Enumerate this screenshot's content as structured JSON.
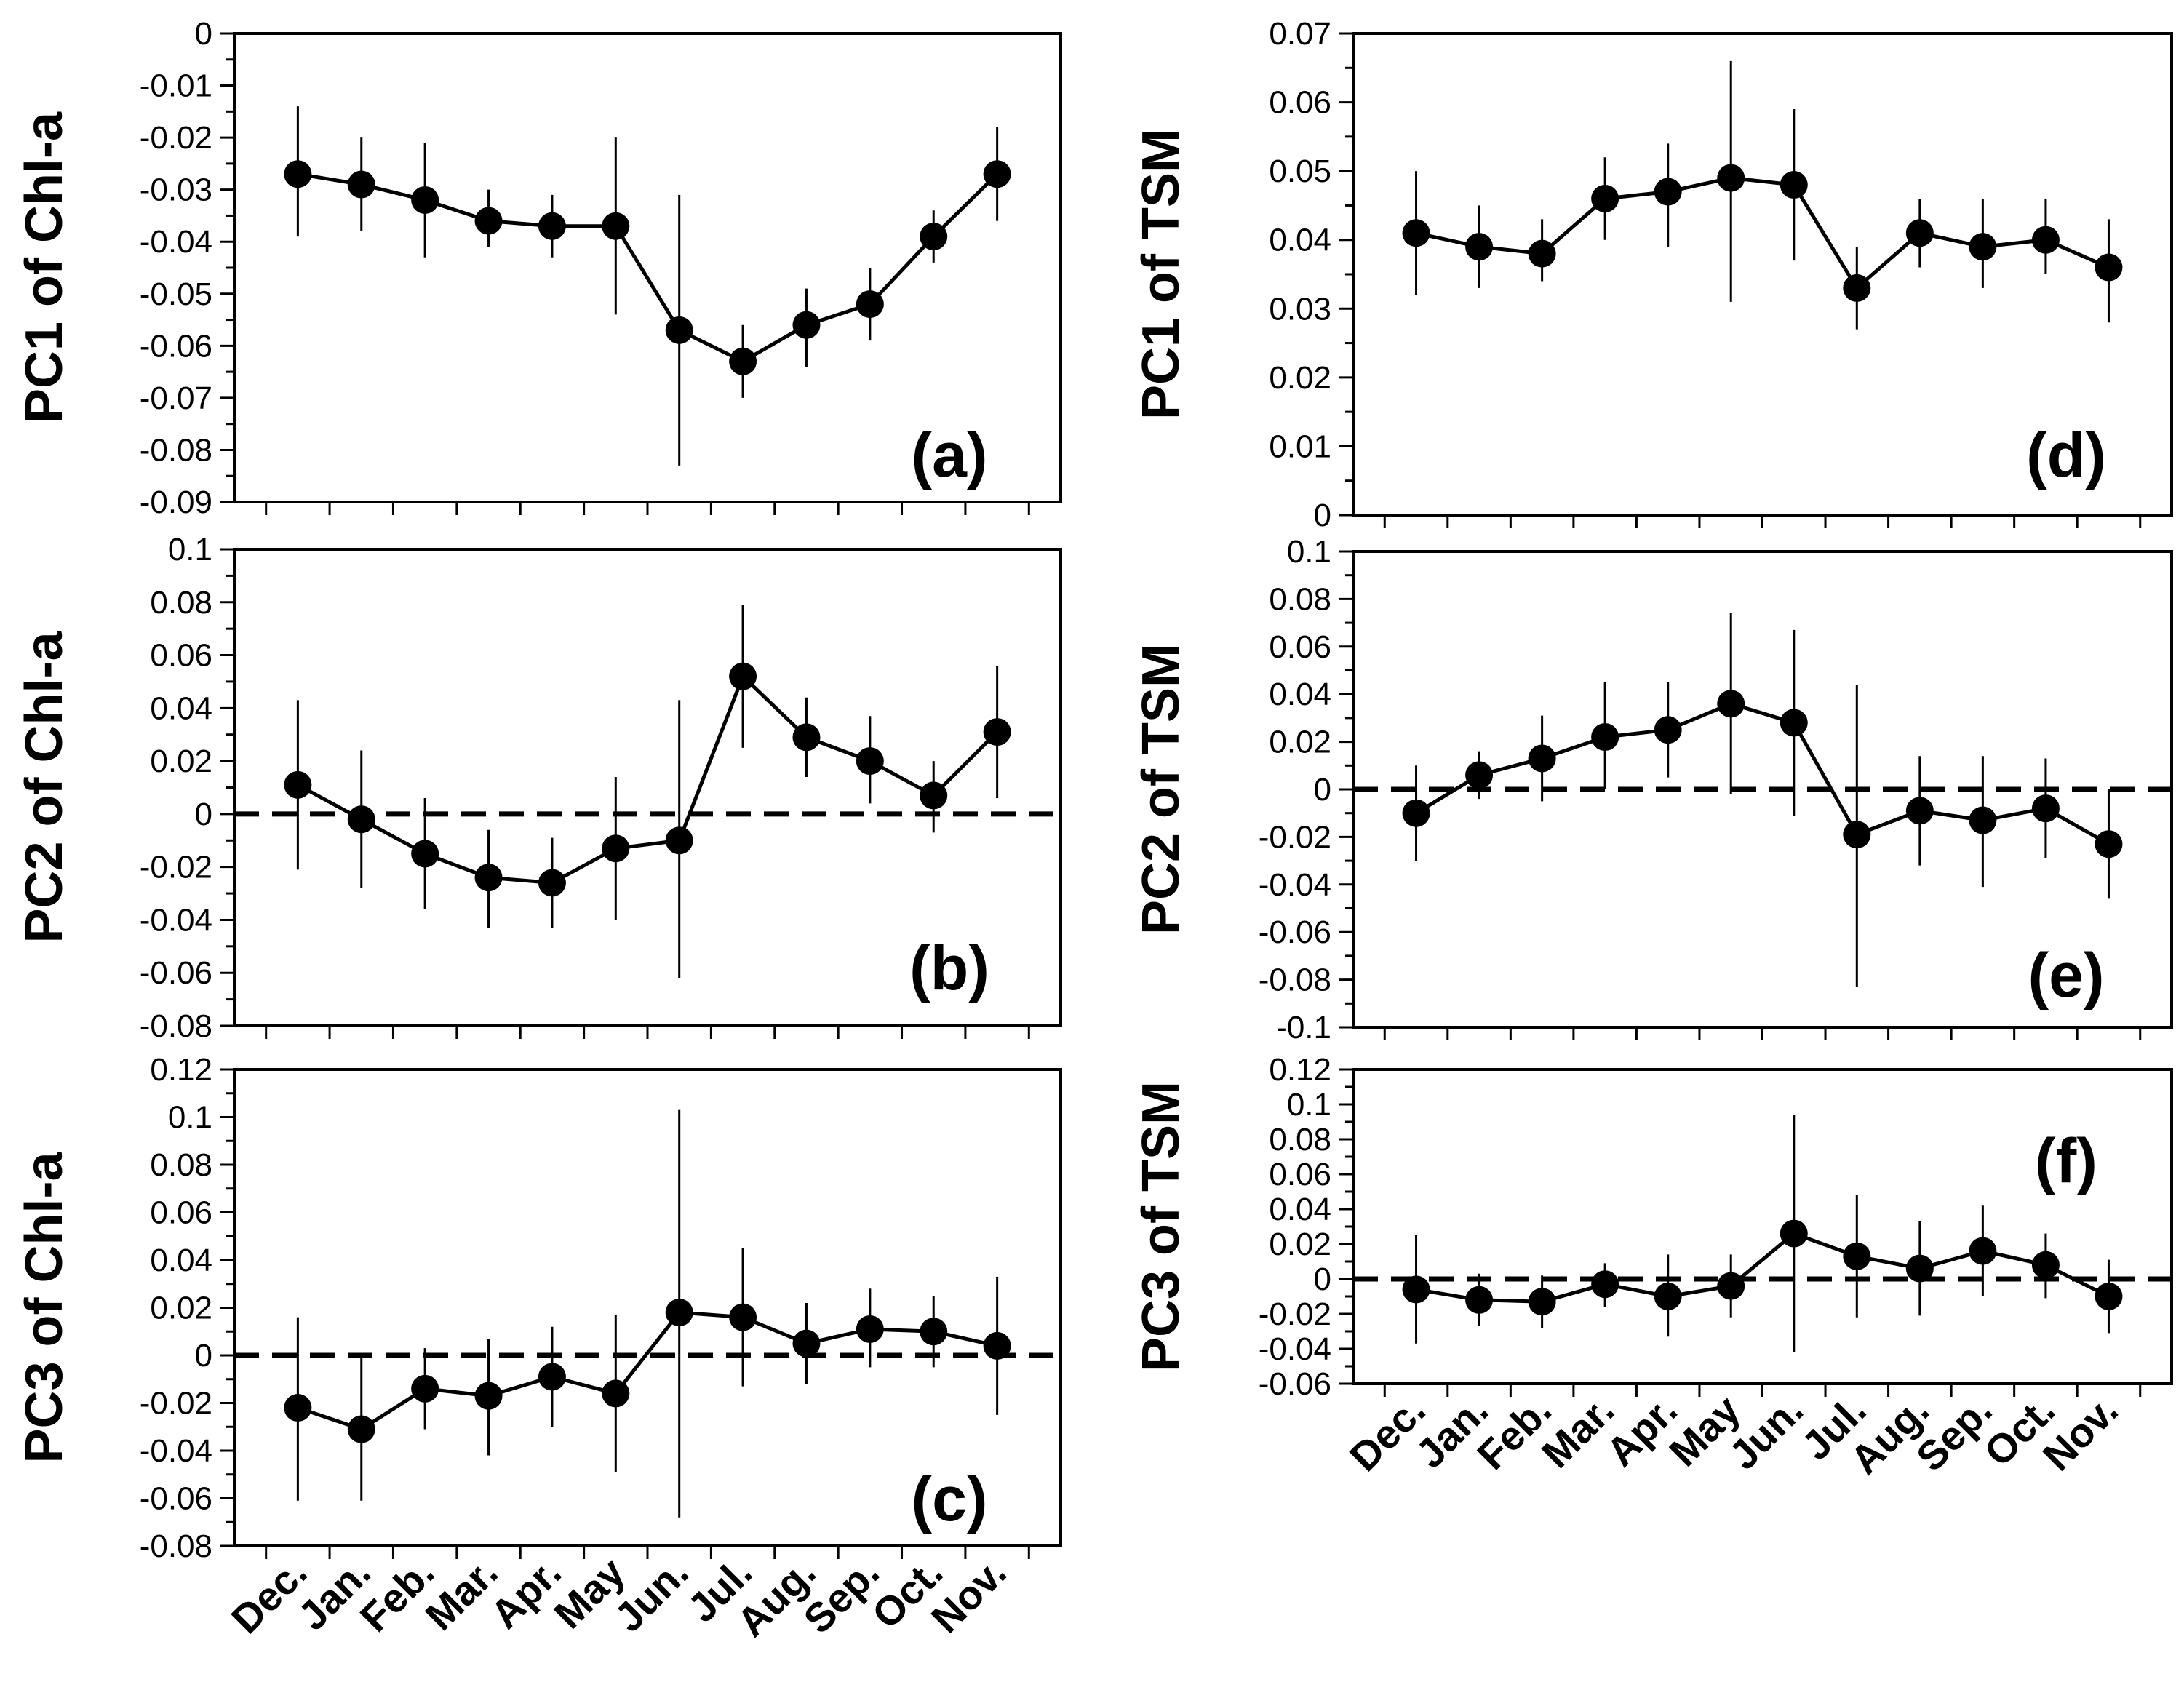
{
  "figure": {
    "months": [
      "Dec.",
      "Jan.",
      "Feb.",
      "Mar.",
      "Apr.",
      "May",
      "Jun.",
      "Jul.",
      "Aug.",
      "Sep.",
      "Oct.",
      "Nov."
    ]
  },
  "chart_data": [
    {
      "type": "line",
      "panel": "(a)",
      "ylabel": "PC1 of Chl-a",
      "ylim": [
        -0.09,
        0
      ],
      "ystep": 0.01,
      "yticks": [
        "0",
        "-0.01",
        "-0.02",
        "-0.03",
        "-0.04",
        "-0.05",
        "-0.06",
        "-0.07",
        "-0.08",
        "-0.09"
      ],
      "categories": [
        "Dec.",
        "Jan.",
        "Feb.",
        "Mar.",
        "Apr.",
        "May",
        "Jun.",
        "Jul.",
        "Aug.",
        "Sep.",
        "Oct.",
        "Nov."
      ],
      "values": [
        -0.027,
        -0.029,
        -0.032,
        -0.036,
        -0.037,
        -0.037,
        -0.057,
        -0.063,
        -0.056,
        -0.052,
        -0.039,
        -0.027
      ],
      "err_low": [
        -0.039,
        -0.038,
        -0.043,
        -0.041,
        -0.043,
        -0.054,
        -0.083,
        -0.07,
        -0.064,
        -0.059,
        -0.044,
        -0.036
      ],
      "err_high": [
        -0.014,
        -0.02,
        -0.021,
        -0.03,
        -0.031,
        -0.02,
        -0.031,
        -0.056,
        -0.049,
        -0.045,
        -0.034,
        -0.018
      ],
      "zero_line": false,
      "show_xlabels": false
    },
    {
      "type": "line",
      "panel": "(b)",
      "ylabel": "PC2 of Chl-a",
      "ylim": [
        -0.08,
        0.1
      ],
      "ystep": 0.02,
      "yticks": [
        "0.1",
        "0.08",
        "0.06",
        "0.04",
        "0.02",
        "0",
        "-0.02",
        "-0.04",
        "-0.06",
        "-0.08"
      ],
      "categories": [
        "Dec.",
        "Jan.",
        "Feb.",
        "Mar.",
        "Apr.",
        "May",
        "Jun.",
        "Jul.",
        "Aug.",
        "Sep.",
        "Oct.",
        "Nov."
      ],
      "values": [
        0.011,
        -0.002,
        -0.015,
        -0.024,
        -0.026,
        -0.013,
        -0.01,
        0.052,
        0.029,
        0.02,
        0.007,
        0.031
      ],
      "err_low": [
        -0.021,
        -0.028,
        -0.036,
        -0.043,
        -0.043,
        -0.04,
        -0.062,
        0.025,
        0.014,
        0.004,
        -0.007,
        0.006
      ],
      "err_high": [
        0.043,
        0.024,
        0.006,
        -0.006,
        -0.009,
        0.014,
        0.043,
        0.079,
        0.044,
        0.037,
        0.02,
        0.056
      ],
      "zero_line": true,
      "show_xlabels": false
    },
    {
      "type": "line",
      "panel": "(c)",
      "ylabel": "PC3 of Chl-a",
      "ylim": [
        -0.08,
        0.12
      ],
      "ystep": 0.02,
      "yticks": [
        "0.12",
        "0.1",
        "0.08",
        "0.06",
        "0.04",
        "0.02",
        "0",
        "-0.02",
        "-0.04",
        "-0.06",
        "-0.08"
      ],
      "categories": [
        "Dec.",
        "Jan.",
        "Feb.",
        "Mar.",
        "Apr.",
        "May",
        "Jun.",
        "Jul.",
        "Aug.",
        "Sep.",
        "Oct.",
        "Nov."
      ],
      "values": [
        -0.022,
        -0.031,
        -0.014,
        -0.017,
        -0.009,
        -0.016,
        0.018,
        0.016,
        0.005,
        0.011,
        0.01,
        0.004
      ],
      "err_low": [
        -0.061,
        -0.061,
        -0.031,
        -0.042,
        -0.03,
        -0.049,
        -0.068,
        -0.013,
        -0.012,
        -0.005,
        -0.005,
        -0.025
      ],
      "err_high": [
        0.016,
        0.0,
        0.003,
        0.007,
        0.012,
        0.017,
        0.103,
        0.045,
        0.022,
        0.028,
        0.025,
        0.033
      ],
      "zero_line": true,
      "show_xlabels": true
    },
    {
      "type": "line",
      "panel": "(d)",
      "ylabel": "PC1 of TSM",
      "ylim": [
        0,
        0.07
      ],
      "ystep": 0.01,
      "yticks": [
        "0.07",
        "0.06",
        "0.05",
        "0.04",
        "0.03",
        "0.02",
        "0.01",
        "0"
      ],
      "categories": [
        "Dec.",
        "Jan.",
        "Feb.",
        "Mar.",
        "Apr.",
        "May",
        "Jun.",
        "Jul.",
        "Aug.",
        "Sep.",
        "Oct.",
        "Nov."
      ],
      "values": [
        0.041,
        0.039,
        0.038,
        0.046,
        0.047,
        0.049,
        0.048,
        0.033,
        0.041,
        0.039,
        0.04,
        0.036
      ],
      "err_low": [
        0.032,
        0.033,
        0.034,
        0.04,
        0.039,
        0.031,
        0.037,
        0.027,
        0.036,
        0.033,
        0.035,
        0.028
      ],
      "err_high": [
        0.05,
        0.045,
        0.043,
        0.052,
        0.054,
        0.066,
        0.059,
        0.039,
        0.046,
        0.046,
        0.046,
        0.043
      ],
      "zero_line": false,
      "show_xlabels": false
    },
    {
      "type": "line",
      "panel": "(e)",
      "ylabel": "PC2 of TSM",
      "ylim": [
        -0.1,
        0.1
      ],
      "ystep": 0.02,
      "yticks": [
        "0.1",
        "0.08",
        "0.06",
        "0.04",
        "0.02",
        "0",
        "-0.02",
        "-0.04",
        "-0.06",
        "-0.08",
        "-0.1"
      ],
      "categories": [
        "Dec.",
        "Jan.",
        "Feb.",
        "Mar.",
        "Apr.",
        "May",
        "Jun.",
        "Jul.",
        "Aug.",
        "Sep.",
        "Oct.",
        "Nov."
      ],
      "values": [
        -0.01,
        0.006,
        0.013,
        0.022,
        0.025,
        0.036,
        0.028,
        -0.019,
        -0.009,
        -0.013,
        -0.008,
        -0.023
      ],
      "err_low": [
        -0.03,
        -0.004,
        -0.005,
        0.0,
        0.005,
        -0.002,
        -0.011,
        -0.083,
        -0.032,
        -0.041,
        -0.029,
        -0.046
      ],
      "err_high": [
        0.01,
        0.016,
        0.031,
        0.045,
        0.045,
        0.074,
        0.067,
        0.044,
        0.014,
        0.014,
        0.013,
        0.0
      ],
      "zero_line": true,
      "show_xlabels": false
    },
    {
      "type": "line",
      "panel": "(f)",
      "ylabel": "PC3 of TSM",
      "ylim": [
        -0.06,
        0.12
      ],
      "ystep": 0.02,
      "yticks": [
        "0.12",
        "0.1",
        "0.08",
        "0.06",
        "0.04",
        "0.02",
        "0",
        "-0.02",
        "-0.04",
        "-0.06"
      ],
      "categories": [
        "Dec.",
        "Jan.",
        "Feb.",
        "Mar.",
        "Apr.",
        "May",
        "Jun.",
        "Jul.",
        "Aug.",
        "Sep.",
        "Oct.",
        "Nov."
      ],
      "values": [
        -0.006,
        -0.012,
        -0.013,
        -0.003,
        -0.01,
        -0.004,
        0.026,
        0.013,
        0.006,
        0.016,
        0.008,
        -0.01
      ],
      "err_low": [
        -0.037,
        -0.027,
        -0.028,
        -0.016,
        -0.033,
        -0.022,
        -0.042,
        -0.022,
        -0.021,
        -0.01,
        -0.011,
        -0.031
      ],
      "err_high": [
        0.025,
        0.003,
        0.002,
        0.009,
        0.014,
        0.014,
        0.094,
        0.048,
        0.033,
        0.042,
        0.026,
        0.011
      ],
      "zero_line": true,
      "show_xlabels": true
    }
  ]
}
